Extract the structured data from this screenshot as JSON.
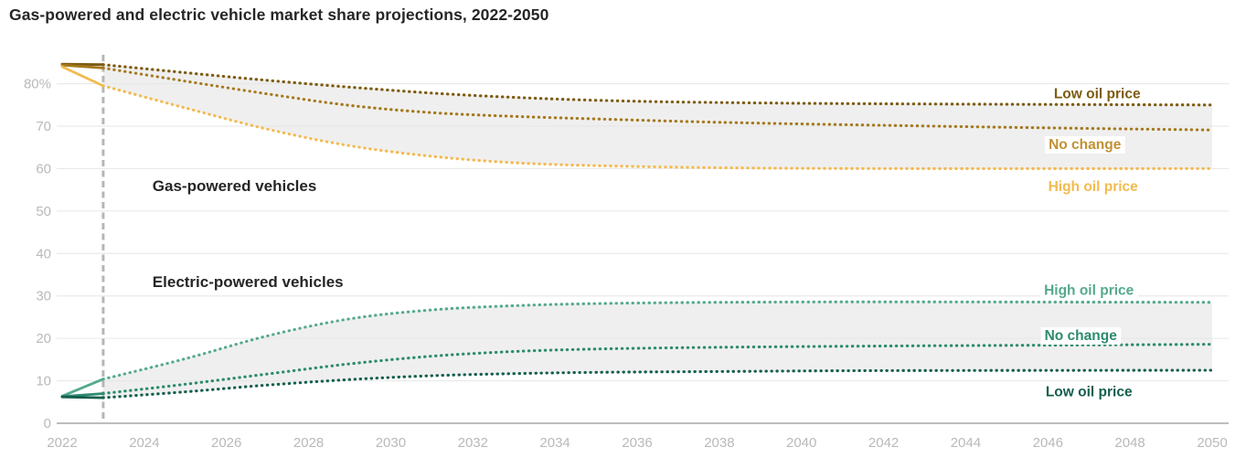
{
  "title": "Gas-powered and electric vehicle market share projections, 2022-2050",
  "chart_data": {
    "type": "line",
    "title": "Gas-powered and electric vehicle market share projections, 2022-2050",
    "xlabel": "",
    "ylabel": "",
    "unit": "%",
    "x_range": [
      2022,
      2050
    ],
    "y_range": [
      0,
      86
    ],
    "grid": true,
    "history_end": 2023,
    "divider": {
      "year": 2023,
      "style": "dashed"
    },
    "y_ticks": [
      {
        "value": 0,
        "label": "0"
      },
      {
        "value": 10,
        "label": "10"
      },
      {
        "value": 20,
        "label": "20"
      },
      {
        "value": 30,
        "label": "30"
      },
      {
        "value": 40,
        "label": "40"
      },
      {
        "value": 50,
        "label": "50"
      },
      {
        "value": 60,
        "label": "60"
      },
      {
        "value": 70,
        "label": "70"
      },
      {
        "value": 80,
        "label": "80%"
      }
    ],
    "x_ticks": [
      {
        "value": 2022,
        "label": "2022"
      },
      {
        "value": 2024,
        "label": "2024"
      },
      {
        "value": 2026,
        "label": "2026"
      },
      {
        "value": 2028,
        "label": "2028"
      },
      {
        "value": 2030,
        "label": "2030"
      },
      {
        "value": 2032,
        "label": "2032"
      },
      {
        "value": 2034,
        "label": "2034"
      },
      {
        "value": 2036,
        "label": "2036"
      },
      {
        "value": 2038,
        "label": "2038"
      },
      {
        "value": 2040,
        "label": "2040"
      },
      {
        "value": 2042,
        "label": "2042"
      },
      {
        "value": 2044,
        "label": "2044"
      },
      {
        "value": 2046,
        "label": "2046"
      },
      {
        "value": 2048,
        "label": "2048"
      },
      {
        "value": 2050,
        "label": "2050"
      }
    ],
    "groups": [
      {
        "id": "gas",
        "label": "Gas-powered vehicles",
        "label_anchor": [
          2024.2,
          56
        ],
        "band": {
          "top": "low-oil-price",
          "bottom": "high-oil-price",
          "color": "#efefef"
        },
        "series": [
          {
            "id": "low-oil-price",
            "label": "Low oil price",
            "color": "#7d5c10",
            "label_color": "#7d5c10",
            "label_anchor": [
              2047.2,
              77.8
            ],
            "points": [
              [
                2022,
                84.6
              ],
              [
                2023,
                84.5
              ],
              [
                2025,
                82.6
              ],
              [
                2027,
                80.8
              ],
              [
                2029,
                79.2
              ],
              [
                2031,
                77.8
              ],
              [
                2033,
                76.8
              ],
              [
                2035,
                76.1
              ],
              [
                2037,
                75.7
              ],
              [
                2040,
                75.4
              ],
              [
                2044,
                75.2
              ],
              [
                2050,
                75
              ]
            ]
          },
          {
            "id": "no-change",
            "label": "No change",
            "color": "#a5791c",
            "label_color": "#c19132",
            "label_anchor": [
              2046.9,
              65.8
            ],
            "points": [
              [
                2022,
                84.4
              ],
              [
                2023,
                83.7
              ],
              [
                2025,
                80.6
              ],
              [
                2027,
                77.6
              ],
              [
                2029,
                74.9
              ],
              [
                2031,
                73.2
              ],
              [
                2033,
                72.3
              ],
              [
                2035,
                71.7
              ],
              [
                2038,
                70.9
              ],
              [
                2042,
                70.2
              ],
              [
                2046,
                69.6
              ],
              [
                2050,
                69.1
              ]
            ]
          },
          {
            "id": "high-oil-price",
            "label": "High oil price",
            "color": "#f3ba4f",
            "label_color": "#f3ba4f",
            "label_anchor": [
              2047.1,
              55.9
            ],
            "points": [
              [
                2022,
                84
              ],
              [
                2023,
                79.5
              ],
              [
                2025,
                74.3
              ],
              [
                2027,
                69.3
              ],
              [
                2029,
                65.4
              ],
              [
                2031,
                62.9
              ],
              [
                2033,
                61.4
              ],
              [
                2035,
                60.7
              ],
              [
                2038,
                60.2
              ],
              [
                2042,
                60
              ],
              [
                2050,
                60
              ]
            ]
          }
        ]
      },
      {
        "id": "ev",
        "label": "Electric-powered vehicles",
        "label_anchor": [
          2024.2,
          33.4
        ],
        "band": {
          "top": "high-oil-price",
          "bottom": "low-oil-price",
          "color": "#efefef"
        },
        "series": [
          {
            "id": "high-oil-price",
            "label": "High oil price",
            "color": "#54a98e",
            "label_color": "#54a98e",
            "label_anchor": [
              2047,
              31.5
            ],
            "points": [
              [
                2022,
                6.4
              ],
              [
                2023,
                10.4
              ],
              [
                2025,
                15.2
              ],
              [
                2027,
                20.6
              ],
              [
                2029,
                24.6
              ],
              [
                2031,
                26.7
              ],
              [
                2033,
                27.7
              ],
              [
                2035,
                28.2
              ],
              [
                2038,
                28.5
              ],
              [
                2042,
                28.6
              ],
              [
                2050,
                28.5
              ]
            ]
          },
          {
            "id": "no-change",
            "label": "No change",
            "color": "#2d8b6f",
            "label_color": "#2d8b6f",
            "label_anchor": [
              2046.8,
              20.8
            ],
            "points": [
              [
                2022,
                6.3
              ],
              [
                2023,
                7
              ],
              [
                2025,
                9.2
              ],
              [
                2027,
                11.6
              ],
              [
                2029,
                14
              ],
              [
                2031,
                15.8
              ],
              [
                2033,
                16.9
              ],
              [
                2035,
                17.5
              ],
              [
                2038,
                17.9
              ],
              [
                2042,
                18.2
              ],
              [
                2046,
                18.4
              ],
              [
                2050,
                18.6
              ]
            ]
          },
          {
            "id": "low-oil-price",
            "label": "Low oil price",
            "color": "#155f4d",
            "label_color": "#155f4d",
            "label_anchor": [
              2047,
              7.5
            ],
            "points": [
              [
                2022,
                6.2
              ],
              [
                2023,
                6
              ],
              [
                2025,
                7.4
              ],
              [
                2027,
                9
              ],
              [
                2029,
                10.3
              ],
              [
                2031,
                11.2
              ],
              [
                2033,
                11.7
              ],
              [
                2035,
                12
              ],
              [
                2038,
                12.2
              ],
              [
                2042,
                12.4
              ],
              [
                2050,
                12.5
              ]
            ]
          }
        ]
      }
    ]
  },
  "style": {
    "background": "#ffffff",
    "title_color": "#262626",
    "group_label_color": "#262626",
    "tick_color": "#b9b9b9",
    "grid_color": "#e6e6e6",
    "axis_color": "#bdbdbd",
    "divider_color": "#b6b6b6",
    "band_color": "#efefef",
    "label_halo": "#ffffff"
  }
}
